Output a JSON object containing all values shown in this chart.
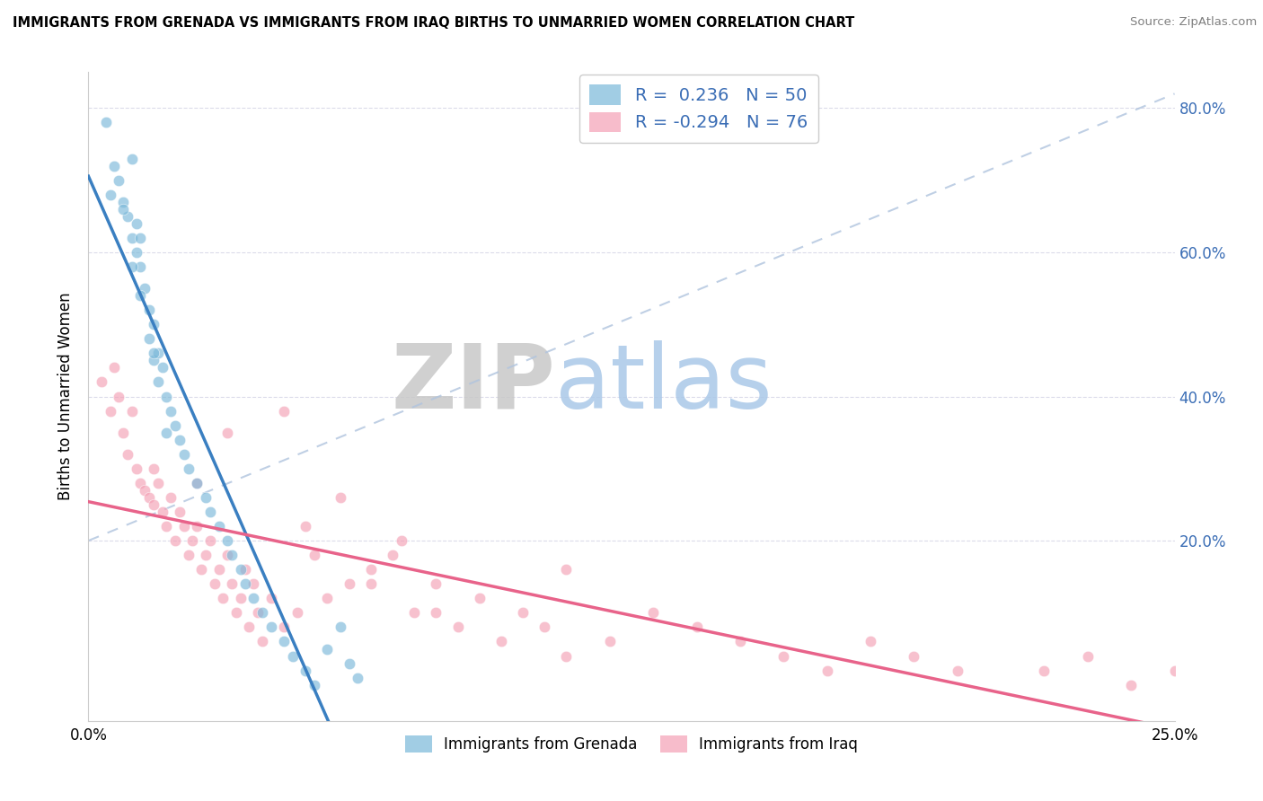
{
  "title": "IMMIGRANTS FROM GRENADA VS IMMIGRANTS FROM IRAQ BIRTHS TO UNMARRIED WOMEN CORRELATION CHART",
  "source": "Source: ZipAtlas.com",
  "ylabel": "Births to Unmarried Women",
  "grenada_R": 0.236,
  "grenada_N": 50,
  "iraq_R": -0.294,
  "iraq_N": 76,
  "grenada_color": "#7ab8d9",
  "iraq_color": "#f4a0b5",
  "grenada_line_color": "#3a7fc1",
  "iraq_line_color": "#e8638a",
  "legend_color": "#3a6db5",
  "xlim": [
    0.0,
    25.0
  ],
  "ylim": [
    -5.0,
    85.0
  ],
  "ytick_positions": [
    0,
    20,
    40,
    60,
    80
  ],
  "ytick_right_labels": [
    "",
    "20.0%",
    "40.0%",
    "60.0%",
    "80.0%"
  ],
  "xtick_positions": [
    0,
    25
  ],
  "xtick_labels": [
    "0.0%",
    "25.0%"
  ],
  "watermark_zip": "ZIP",
  "watermark_atlas": "atlas",
  "watermark_zip_color": "#c8c8c8",
  "watermark_atlas_color": "#aac8e8",
  "grid_color": "#d8d8e8",
  "grenada_x": [
    0.4,
    0.5,
    0.7,
    0.8,
    0.9,
    1.0,
    1.0,
    1.1,
    1.1,
    1.2,
    1.2,
    1.3,
    1.4,
    1.4,
    1.5,
    1.5,
    1.6,
    1.6,
    1.7,
    1.8,
    1.8,
    1.9,
    2.0,
    2.1,
    2.2,
    2.3,
    2.5,
    2.7,
    2.8,
    3.0,
    3.2,
    3.3,
    3.5,
    3.6,
    3.8,
    4.0,
    4.2,
    4.5,
    4.7,
    5.0,
    5.2,
    5.5,
    5.8,
    6.0,
    6.2,
    0.6,
    0.8,
    1.0,
    1.2,
    1.5
  ],
  "grenada_y": [
    78,
    68,
    70,
    67,
    65,
    62,
    73,
    60,
    64,
    58,
    62,
    55,
    52,
    48,
    45,
    50,
    46,
    42,
    44,
    40,
    35,
    38,
    36,
    34,
    32,
    30,
    28,
    26,
    24,
    22,
    20,
    18,
    16,
    14,
    12,
    10,
    8,
    6,
    4,
    2,
    0,
    5,
    8,
    3,
    1,
    72,
    66,
    58,
    54,
    46
  ],
  "iraq_x": [
    0.3,
    0.5,
    0.6,
    0.7,
    0.8,
    0.9,
    1.0,
    1.1,
    1.2,
    1.3,
    1.4,
    1.5,
    1.6,
    1.7,
    1.8,
    1.9,
    2.0,
    2.1,
    2.2,
    2.3,
    2.4,
    2.5,
    2.6,
    2.7,
    2.8,
    2.9,
    3.0,
    3.1,
    3.2,
    3.3,
    3.4,
    3.5,
    3.6,
    3.7,
    3.8,
    3.9,
    4.0,
    4.2,
    4.5,
    4.8,
    5.0,
    5.2,
    5.5,
    6.0,
    6.5,
    7.0,
    7.5,
    8.0,
    8.5,
    9.0,
    9.5,
    10.0,
    10.5,
    11.0,
    12.0,
    13.0,
    14.0,
    15.0,
    16.0,
    17.0,
    18.0,
    19.0,
    20.0,
    22.0,
    23.0,
    24.0,
    25.0,
    4.5,
    5.8,
    7.2,
    3.2,
    2.5,
    1.5,
    6.5,
    8.0,
    11.0
  ],
  "iraq_y": [
    42,
    38,
    44,
    40,
    35,
    32,
    38,
    30,
    28,
    27,
    26,
    25,
    28,
    24,
    22,
    26,
    20,
    24,
    22,
    18,
    20,
    22,
    16,
    18,
    20,
    14,
    16,
    12,
    18,
    14,
    10,
    12,
    16,
    8,
    14,
    10,
    6,
    12,
    8,
    10,
    22,
    18,
    12,
    14,
    16,
    18,
    10,
    14,
    8,
    12,
    6,
    10,
    8,
    4,
    6,
    10,
    8,
    6,
    4,
    2,
    6,
    4,
    2,
    2,
    4,
    0,
    2,
    38,
    26,
    20,
    35,
    28,
    30,
    14,
    10,
    16
  ]
}
